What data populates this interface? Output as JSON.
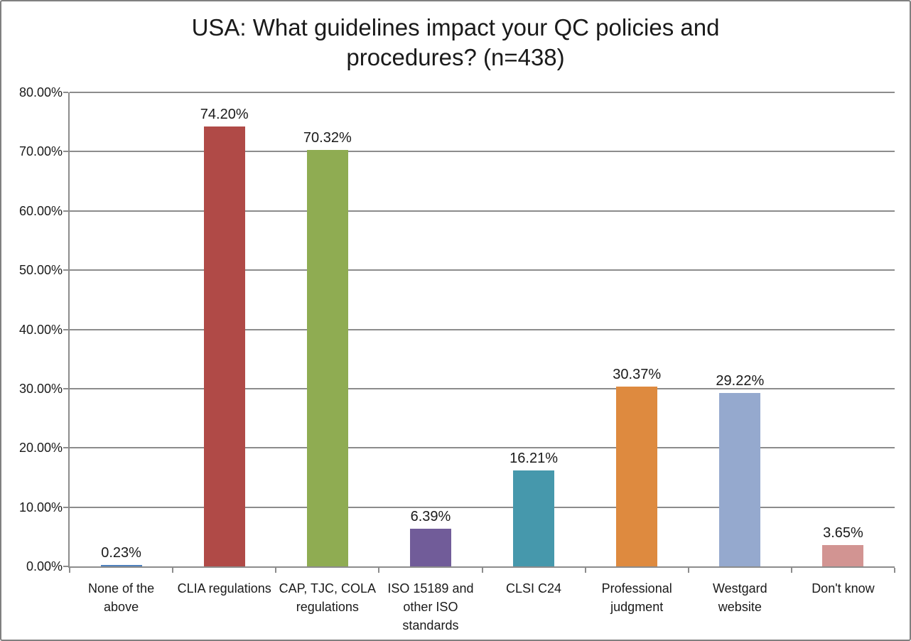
{
  "frame": {
    "background": "#ffffff",
    "border_color": "#808080"
  },
  "chart_data": {
    "type": "bar",
    "title": "USA: What guidelines impact your QC policies and procedures? (n=438)",
    "categories": [
      "None of the above",
      "CLIA regulations",
      "CAP, TJC, COLA regulations",
      "ISO 15189 and other ISO standards",
      "CLSI C24",
      "Professional judgment",
      "Westgard website",
      "Don't know"
    ],
    "values": [
      0.23,
      74.2,
      70.32,
      6.39,
      16.21,
      30.37,
      29.22,
      3.65
    ],
    "value_labels": [
      "0.23%",
      "74.20%",
      "70.32%",
      "6.39%",
      "16.21%",
      "30.37%",
      "29.22%",
      "3.65%"
    ],
    "bar_colors": [
      "#4f81bd",
      "#b04a47",
      "#8fac52",
      "#715c99",
      "#4698ac",
      "#de8a3f",
      "#95a9ce",
      "#d29492"
    ],
    "ylim": [
      0,
      80
    ],
    "yticks": [
      {
        "value": 0,
        "label": "0.00%"
      },
      {
        "value": 10,
        "label": "10.00%"
      },
      {
        "value": 20,
        "label": "20.00%"
      },
      {
        "value": 30,
        "label": "30.00%"
      },
      {
        "value": 40,
        "label": "40.00%"
      },
      {
        "value": 50,
        "label": "50.00%"
      },
      {
        "value": 60,
        "label": "60.00%"
      },
      {
        "value": 70,
        "label": "70.00%"
      },
      {
        "value": 80,
        "label": "80.00%"
      }
    ],
    "grid": true,
    "legend": "none",
    "axis_color": "#8c8c8c",
    "text_color": "#1a1a1a"
  }
}
